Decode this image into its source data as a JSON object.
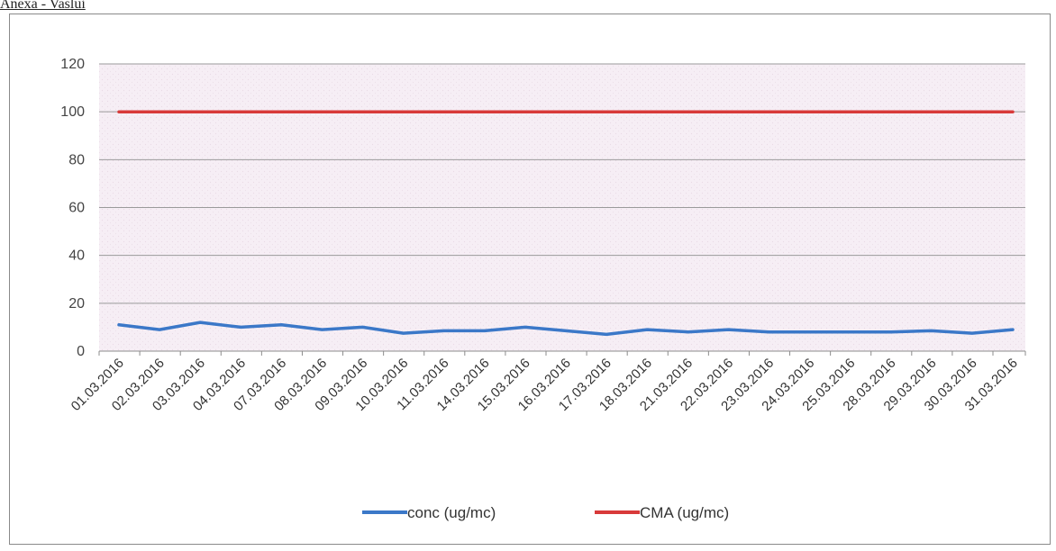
{
  "header_text": "Anexa - Vaslui",
  "chart_data": {
    "type": "line",
    "title": "",
    "xlabel": "",
    "ylabel": "",
    "ylim": [
      0,
      120
    ],
    "yticks": [
      0,
      20,
      40,
      60,
      80,
      100,
      120
    ],
    "grid": true,
    "legend_position": "bottom",
    "categories": [
      "01.03.2016",
      "02.03.2016",
      "03.03.2016",
      "04.03.2016",
      "07.03.2016",
      "08.03.2016",
      "09.03.2016",
      "10.03.2016",
      "11.03.2016",
      "14.03.2016",
      "15.03.2016",
      "16.03.2016",
      "17.03.2016",
      "18.03.2016",
      "21.03.2016",
      "22.03.2016",
      "23.03.2016",
      "24.03.2016",
      "25.03.2016",
      "28.03.2016",
      "29.03.2016",
      "30.03.2016",
      "31.03.2016"
    ],
    "series": [
      {
        "name": "conc (ug/mc)",
        "color": "#3b78c8",
        "values": [
          11,
          9,
          12,
          10,
          11,
          9,
          10,
          7.5,
          8.5,
          8.5,
          10,
          8.5,
          7,
          9,
          8,
          9,
          8,
          8,
          8,
          8,
          8.5,
          7.5,
          9
        ]
      },
      {
        "name": "CMA (ug/mc)",
        "color": "#d83a3a",
        "values": [
          100,
          100,
          100,
          100,
          100,
          100,
          100,
          100,
          100,
          100,
          100,
          100,
          100,
          100,
          100,
          100,
          100,
          100,
          100,
          100,
          100,
          100,
          100
        ]
      }
    ]
  }
}
